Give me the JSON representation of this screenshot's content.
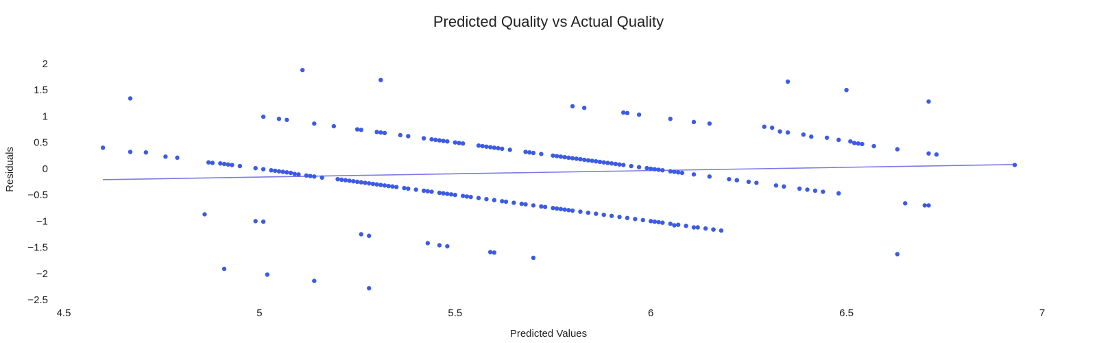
{
  "chart_data": {
    "type": "scatter",
    "title": "Predicted Quality vs Actual Quality",
    "xlabel": "Predicted Values",
    "ylabel": "Residuals",
    "xlim": [
      4.5,
      7.0
    ],
    "ylim": [
      -2.5,
      2.0
    ],
    "x_ticks": [
      "4.5",
      "5",
      "5.5",
      "6",
      "6.5",
      "7"
    ],
    "y_ticks": [
      "2",
      "1.5",
      "1",
      "0.5",
      "0",
      "−0.5",
      "−1",
      "−1.5",
      "−2",
      "−2.5"
    ],
    "x_tick_values": [
      4.5,
      5.0,
      5.5,
      6.0,
      6.5,
      7.0
    ],
    "y_tick_values": [
      2.0,
      1.5,
      1.0,
      0.5,
      0.0,
      -0.5,
      -1.0,
      -1.5,
      -2.0,
      -2.5
    ],
    "grid": false,
    "point_color": "#3b5be6",
    "line_color": "#7b79e8",
    "trend_line": {
      "x": [
        4.6,
        6.93
      ],
      "y": [
        -0.21,
        0.08
      ]
    },
    "points": {
      "x": [
        4.6,
        4.67,
        4.71,
        4.76,
        4.79,
        4.87,
        4.88,
        4.9,
        4.91,
        4.92,
        4.93,
        4.95,
        4.99,
        5.01,
        5.03,
        5.04,
        5.05,
        5.06,
        5.07,
        5.08,
        5.09,
        5.1,
        5.12,
        5.13,
        5.14,
        5.16,
        5.2,
        5.21,
        5.22,
        5.23,
        5.24,
        5.25,
        5.26,
        5.27,
        5.28,
        5.29,
        5.3,
        5.31,
        5.32,
        5.33,
        5.34,
        5.35,
        5.37,
        5.38,
        5.4,
        5.42,
        5.43,
        5.44,
        5.46,
        5.47,
        5.48,
        5.49,
        5.5,
        5.52,
        5.53,
        5.54,
        5.56,
        5.58,
        5.6,
        5.62,
        5.63,
        5.65,
        5.67,
        5.68,
        5.7,
        5.72,
        5.73,
        5.75,
        5.76,
        5.77,
        5.78,
        5.79,
        5.8,
        5.82,
        5.84,
        5.86,
        5.88,
        5.9,
        5.92,
        5.94,
        5.96,
        5.98,
        6.0,
        6.01,
        6.03,
        6.05,
        6.07,
        6.09,
        6.12,
        6.14,
        6.16,
        6.18,
        6.22,
        6.25,
        6.27,
        6.32,
        6.34,
        6.38,
        6.4,
        6.42,
        6.44,
        5.01,
        5.05,
        5.07,
        5.14,
        5.19,
        5.25,
        5.26,
        5.3,
        5.31,
        5.32,
        5.36,
        5.38,
        5.42,
        5.44,
        5.45,
        5.46,
        5.47,
        5.48,
        5.5,
        5.51,
        5.52,
        5.56,
        5.57,
        5.58,
        5.59,
        5.6,
        5.61,
        5.62,
        5.64,
        5.68,
        5.69,
        5.7,
        5.72,
        5.75,
        5.76,
        5.77,
        5.78,
        5.79,
        5.8,
        5.81,
        5.82,
        5.83,
        5.84,
        5.85,
        5.86,
        5.87,
        5.88,
        5.89,
        5.9,
        5.91,
        5.92,
        5.93,
        5.95,
        5.97,
        5.99,
        6.0,
        6.01,
        6.02,
        6.03,
        6.05,
        6.06,
        6.07,
        6.08,
        6.11,
        6.15,
        6.2,
        6.22,
        6.29,
        6.31,
        6.33,
        6.35,
        6.39,
        6.41,
        6.45,
        6.48,
        6.51,
        6.52,
        6.53,
        6.54,
        6.57,
        6.63,
        6.71,
        6.73,
        4.67,
        5.11,
        5.31,
        5.8,
        5.83,
        5.93,
        5.94,
        5.97,
        6.05,
        6.11,
        6.15,
        6.35,
        6.5,
        6.71,
        4.86,
        4.99,
        5.01,
        4.91,
        5.02,
        5.14,
        5.26,
        5.28,
        5.28,
        5.43,
        5.46,
        5.48,
        5.59,
        5.6,
        5.7,
        6.02,
        6.06,
        6.11,
        6.16,
        6.48,
        6.63,
        6.65,
        6.7,
        6.71,
        6.93
      ],
      "y": [
        0.4,
        0.32,
        0.31,
        0.23,
        0.21,
        0.12,
        0.11,
        0.1,
        0.09,
        0.08,
        0.07,
        0.05,
        0.01,
        -0.01,
        -0.03,
        -0.04,
        -0.05,
        -0.06,
        -0.07,
        -0.08,
        -0.1,
        -0.11,
        -0.13,
        -0.14,
        -0.15,
        -0.17,
        -0.2,
        -0.21,
        -0.22,
        -0.23,
        -0.24,
        -0.25,
        -0.26,
        -0.27,
        -0.28,
        -0.29,
        -0.3,
        -0.31,
        -0.32,
        -0.33,
        -0.34,
        -0.35,
        -0.37,
        -0.38,
        -0.4,
        -0.42,
        -0.43,
        -0.44,
        -0.46,
        -0.47,
        -0.48,
        -0.49,
        -0.5,
        -0.52,
        -0.53,
        -0.54,
        -0.56,
        -0.58,
        -0.6,
        -0.62,
        -0.63,
        -0.65,
        -0.67,
        -0.68,
        -0.7,
        -0.72,
        -0.73,
        -0.75,
        -0.76,
        -0.77,
        -0.78,
        -0.79,
        -0.8,
        -0.82,
        -0.84,
        -0.86,
        -0.88,
        -0.9,
        -0.92,
        -0.94,
        -0.96,
        -0.98,
        -1.0,
        -1.01,
        -1.03,
        -1.05,
        -1.07,
        -1.09,
        -1.12,
        -1.14,
        -1.16,
        -1.18,
        -0.22,
        -0.25,
        -0.27,
        -0.32,
        -0.34,
        -0.38,
        -0.4,
        -0.42,
        -0.44,
        0.99,
        0.95,
        0.93,
        0.86,
        0.81,
        0.75,
        0.74,
        0.7,
        0.69,
        0.68,
        0.64,
        0.62,
        0.58,
        0.56,
        0.55,
        0.54,
        0.53,
        0.52,
        0.5,
        0.49,
        0.48,
        0.44,
        0.43,
        0.42,
        0.41,
        0.4,
        0.39,
        0.38,
        0.36,
        0.32,
        0.31,
        0.3,
        0.28,
        0.25,
        0.24,
        0.23,
        0.22,
        0.21,
        0.2,
        0.19,
        0.18,
        0.17,
        0.16,
        0.15,
        0.14,
        0.13,
        0.12,
        0.11,
        0.1,
        0.09,
        0.08,
        0.07,
        0.05,
        0.03,
        0.01,
        0.0,
        -0.01,
        -0.02,
        -0.03,
        -0.05,
        -0.06,
        -0.07,
        -0.08,
        -0.11,
        -0.15,
        -0.2,
        -0.22,
        0.8,
        0.78,
        0.71,
        0.69,
        0.65,
        0.61,
        0.59,
        0.55,
        0.52,
        0.49,
        0.48,
        0.47,
        0.43,
        0.37,
        0.29,
        0.27,
        1.34,
        1.88,
        1.69,
        1.19,
        1.16,
        1.07,
        1.06,
        1.03,
        0.95,
        0.89,
        0.86,
        1.66,
        1.5,
        1.28,
        -0.87,
        -1.0,
        -1.01,
        -1.91,
        -2.02,
        -2.14,
        -1.25,
        -1.28,
        -2.28,
        -1.42,
        -1.46,
        -1.48,
        -1.59,
        -1.6,
        -1.7,
        -1.02,
        -1.08,
        -1.12,
        -1.16,
        -0.47,
        -1.63,
        -0.66,
        -0.7,
        -0.7,
        0.07
      ]
    }
  }
}
